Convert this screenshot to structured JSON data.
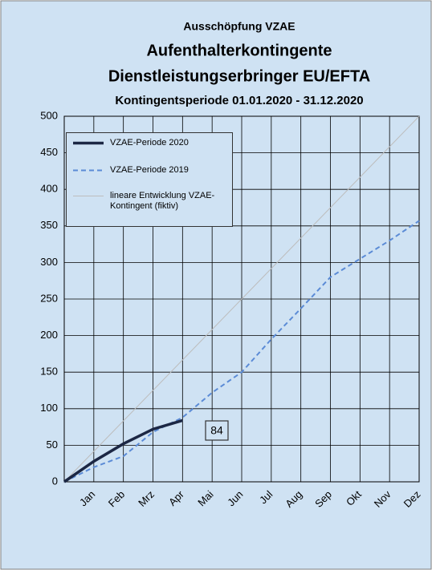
{
  "chart_data": {
    "type": "line",
    "title": "Ausschöpfung VZAE",
    "subtitle": [
      "Aufenthalterkontingente",
      "Dienstleistungserbringer EU/EFTA",
      "Kontingentsperiode 01.01.2020 - 31.12.2020"
    ],
    "categories": [
      null,
      "Jan",
      "Feb",
      "Mrz",
      "Apr",
      "Mai",
      "Jun",
      "Jul",
      "Aug",
      "Sep",
      "Okt",
      "Nov",
      "Dez"
    ],
    "series": [
      {
        "name": "VZAE-Periode 2020",
        "color": "#1c2744",
        "style": "solid",
        "width": 3.5,
        "values": [
          0,
          28,
          52,
          72,
          84,
          null,
          null,
          null,
          null,
          null,
          null,
          null,
          null
        ]
      },
      {
        "name": "VZAE-Periode 2019",
        "color": "#5b8bd6",
        "style": "dashed",
        "width": 2,
        "values": [
          0,
          20,
          35,
          68,
          88,
          122,
          150,
          195,
          237,
          280,
          305,
          330,
          357
        ]
      },
      {
        "name": "lineare Entwicklung VZAE-Kontingent (fiktiv)",
        "color": "#bdbdbd",
        "style": "solid",
        "width": 1,
        "values": [
          0,
          41.7,
          83.3,
          125,
          166.7,
          208.3,
          250,
          291.7,
          333.3,
          375,
          416.7,
          458.3,
          500
        ]
      }
    ],
    "annotation": "84",
    "ylim": [
      0,
      500
    ],
    "yticks": [
      0,
      50,
      100,
      150,
      200,
      250,
      300,
      350,
      400,
      450,
      500
    ],
    "grid": true,
    "legend": "upper left"
  }
}
